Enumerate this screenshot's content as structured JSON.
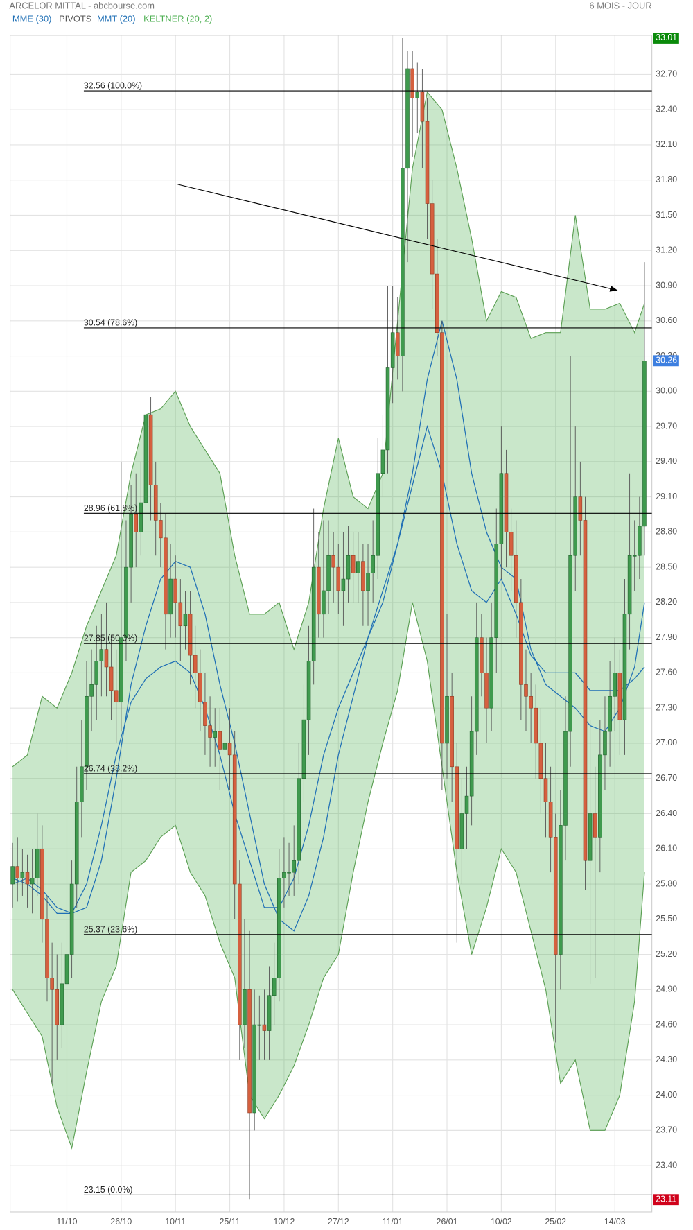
{
  "header": {
    "title": "ARCELOR MITTAL - abcbourse.com",
    "period": "6 MOIS - JOUR"
  },
  "chart_data": {
    "type": "candlestick",
    "categories": [
      null,
      null,
      null,
      null,
      null,
      null,
      null,
      null,
      null,
      null,
      null,
      "11/10",
      null,
      null,
      null,
      null,
      null,
      null,
      null,
      null,
      null,
      null,
      "26/10",
      null,
      null,
      null,
      null,
      null,
      null,
      null,
      null,
      null,
      null,
      "10/11",
      null,
      null,
      null,
      null,
      null,
      null,
      null,
      null,
      null,
      null,
      "25/11",
      null,
      null,
      null,
      null,
      null,
      null,
      null,
      null,
      null,
      null,
      "10/12",
      null,
      null,
      null,
      null,
      null,
      null,
      null,
      null,
      null,
      null,
      "27/12",
      null,
      null,
      null,
      null,
      null,
      null,
      null,
      null,
      null,
      null,
      "11/01",
      null,
      null,
      null,
      null,
      null,
      null,
      null,
      null,
      null,
      null,
      "26/01",
      null,
      null,
      null,
      null,
      null,
      null,
      null,
      null,
      null,
      null,
      "10/02",
      null,
      null,
      null,
      null,
      null,
      null,
      null,
      null,
      null,
      null,
      "25/02",
      null,
      null,
      null,
      null,
      null,
      null,
      null,
      null,
      null,
      null,
      null,
      "14/03",
      null,
      null,
      null,
      null,
      null,
      null
    ],
    "xlim": [
      -0.5,
      129.5
    ],
    "ylim": [
      23.005,
      33.034
    ],
    "yticks": [
      {
        "value": 23.4,
        "label": "23.40"
      },
      {
        "value": 23.7,
        "label": "23.70"
      },
      {
        "value": 24.0,
        "label": "24.00"
      },
      {
        "value": 24.3,
        "label": "24.30"
      },
      {
        "value": 24.6,
        "label": "24.60"
      },
      {
        "value": 24.9,
        "label": "24.90"
      },
      {
        "value": 25.2,
        "label": "25.20"
      },
      {
        "value": 25.5,
        "label": "25.50"
      },
      {
        "value": 25.8,
        "label": "25.80"
      },
      {
        "value": 26.1,
        "label": "26.10"
      },
      {
        "value": 26.4,
        "label": "26.40"
      },
      {
        "value": 26.7,
        "label": "26.70"
      },
      {
        "value": 27.0,
        "label": "27.00"
      },
      {
        "value": 27.3,
        "label": "27.30"
      },
      {
        "value": 27.6,
        "label": "27.60"
      },
      {
        "value": 27.9,
        "label": "27.90"
      },
      {
        "value": 28.2,
        "label": "28.20"
      },
      {
        "value": 28.5,
        "label": "28.50"
      },
      {
        "value": 28.8,
        "label": "28.80"
      },
      {
        "value": 29.1,
        "label": "29.10"
      },
      {
        "value": 29.4,
        "label": "29.40"
      },
      {
        "value": 29.7,
        "label": "29.70"
      },
      {
        "value": 30.0,
        "label": "30.00"
      },
      {
        "value": 30.3,
        "label": "30.30"
      },
      {
        "value": 30.6,
        "label": "30.60"
      },
      {
        "value": 30.9,
        "label": "30.90"
      },
      {
        "value": 31.2,
        "label": "31.20"
      },
      {
        "value": 31.5,
        "label": "31.50"
      },
      {
        "value": 31.8,
        "label": "31.80"
      },
      {
        "value": 32.1,
        "label": "32.10"
      },
      {
        "value": 32.4,
        "label": "32.40"
      },
      {
        "value": 32.7,
        "label": "32.70"
      }
    ],
    "grid": true,
    "up_color": "#3f9a4e",
    "down_color": "#d5603f",
    "open": [
      25.8,
      25.95,
      25.85,
      25.9,
      25.8,
      25.85,
      26.1,
      25.5,
      25.0,
      24.9,
      24.6,
      24.95,
      25.2,
      25.8,
      26.5,
      26.8,
      27.4,
      27.5,
      27.7,
      27.8,
      27.65,
      27.45,
      27.35,
      27.9,
      28.5,
      28.95,
      28.8,
      29.05,
      29.8,
      29.2,
      28.9,
      28.75,
      28.1,
      28.4,
      28.2,
      28.0,
      28.1,
      27.75,
      27.6,
      27.35,
      27.15,
      27.05,
      27.1,
      26.95,
      27.0,
      26.9,
      25.8,
      24.6,
      24.9,
      23.85,
      24.6,
      24.6,
      24.55,
      24.85,
      25.0,
      25.85,
      25.9,
      25.9,
      26.0,
      26.7,
      27.2,
      27.7,
      28.5,
      28.1,
      28.3,
      28.6,
      28.5,
      28.3,
      28.4,
      28.6,
      28.45,
      28.55,
      28.3,
      28.45,
      28.6,
      29.3,
      29.5,
      30.2,
      30.5,
      30.3,
      31.9,
      32.75,
      32.5,
      32.55,
      32.3,
      31.6,
      31.0,
      30.5,
      27.0,
      27.4,
      26.8,
      26.1,
      26.4,
      26.55,
      27.1,
      27.9,
      27.6,
      27.3,
      27.9,
      28.7,
      29.3,
      28.8,
      28.6,
      28.2,
      27.5,
      27.4,
      27.3,
      27.0,
      26.7,
      26.5,
      26.2,
      25.2,
      26.3,
      27.1,
      28.6,
      29.1,
      28.9,
      26.0,
      26.4,
      26.2,
      26.9,
      27.1,
      27.4,
      27.6,
      27.2,
      28.1,
      28.6,
      28.6,
      28.85
    ],
    "high": [
      26.15,
      26.2,
      26.1,
      26.05,
      26.1,
      26.4,
      26.3,
      25.7,
      25.3,
      25.2,
      25.3,
      25.5,
      26.0,
      26.8,
      27.2,
      27.7,
      27.8,
      28.0,
      28.1,
      28.2,
      27.9,
      27.8,
      29.4,
      28.9,
      29.2,
      29.3,
      29.4,
      30.15,
      29.95,
      29.4,
      29.05,
      28.95,
      28.7,
      28.6,
      28.4,
      28.3,
      28.3,
      28.0,
      27.8,
      27.6,
      27.4,
      27.3,
      27.3,
      27.25,
      27.3,
      27.1,
      26.0,
      25.5,
      25.4,
      24.9,
      24.85,
      24.9,
      25.1,
      25.3,
      26.1,
      26.2,
      26.15,
      26.3,
      27.0,
      27.5,
      28.0,
      29.0,
      28.8,
      28.9,
      28.9,
      28.8,
      28.7,
      28.8,
      28.85,
      28.8,
      28.8,
      28.7,
      28.7,
      28.9,
      29.6,
      29.8,
      30.9,
      30.9,
      30.8,
      33.01,
      32.9,
      32.9,
      32.8,
      32.75,
      32.5,
      31.8,
      31.3,
      30.6,
      28.1,
      27.6,
      27.0,
      26.7,
      26.8,
      27.4,
      28.2,
      28.1,
      27.9,
      28.2,
      29.0,
      29.7,
      29.5,
      29.0,
      28.9,
      28.4,
      27.8,
      27.6,
      27.5,
      27.3,
      27.0,
      26.8,
      26.4,
      26.6,
      27.4,
      30.3,
      29.7,
      29.4,
      29.1,
      27.2,
      26.8,
      27.2,
      27.4,
      27.7,
      27.9,
      27.8,
      28.4,
      29.3,
      28.9,
      29.1,
      31.1
    ],
    "low": [
      25.6,
      25.65,
      25.7,
      25.6,
      25.55,
      25.7,
      25.3,
      24.8,
      24.1,
      24.3,
      24.4,
      24.7,
      25.0,
      25.6,
      26.2,
      26.6,
      27.1,
      27.2,
      27.4,
      27.4,
      27.2,
      27.0,
      27.1,
      27.7,
      28.2,
      28.5,
      28.6,
      28.8,
      28.9,
      28.6,
      28.5,
      27.8,
      27.9,
      27.9,
      27.7,
      27.8,
      27.5,
      27.3,
      27.1,
      26.9,
      26.8,
      26.8,
      26.6,
      26.7,
      26.6,
      25.5,
      24.3,
      24.4,
      23.11,
      23.7,
      24.3,
      24.3,
      24.3,
      24.6,
      24.8,
      25.6,
      25.7,
      25.7,
      25.8,
      26.5,
      26.9,
      27.5,
      27.9,
      27.9,
      28.1,
      28.2,
      28.1,
      28.0,
      28.2,
      28.2,
      28.2,
      28.0,
      28.0,
      28.2,
      28.4,
      29.1,
      29.3,
      29.9,
      30.1,
      30.0,
      31.1,
      32.0,
      32.2,
      31.9,
      31.3,
      30.7,
      30.3,
      26.6,
      26.7,
      26.5,
      25.3,
      25.8,
      26.1,
      26.3,
      26.9,
      27.4,
      27.0,
      27.1,
      27.6,
      28.4,
      28.5,
      28.3,
      27.9,
      27.2,
      27.1,
      27.0,
      26.7,
      26.4,
      26.2,
      25.9,
      24.45,
      24.9,
      26.0,
      26.8,
      28.3,
      28.6,
      25.75,
      24.95,
      25.0,
      25.9,
      26.6,
      26.8,
      27.1,
      26.9,
      26.9,
      27.8,
      28.3,
      28.4,
      28.6
    ],
    "close": [
      25.95,
      25.85,
      25.9,
      25.8,
      25.85,
      26.1,
      25.5,
      25.0,
      24.9,
      24.6,
      24.95,
      25.2,
      25.8,
      26.5,
      26.8,
      27.4,
      27.5,
      27.7,
      27.8,
      27.65,
      27.45,
      27.35,
      27.9,
      28.5,
      28.95,
      28.8,
      29.05,
      29.8,
      29.2,
      28.9,
      28.75,
      28.1,
      28.4,
      28.2,
      28.0,
      28.1,
      27.75,
      27.6,
      27.35,
      27.15,
      27.05,
      27.1,
      26.95,
      27.0,
      26.9,
      25.8,
      24.6,
      24.9,
      23.85,
      24.6,
      24.6,
      24.55,
      24.85,
      25.0,
      25.85,
      25.9,
      25.9,
      26.0,
      26.7,
      27.2,
      27.7,
      28.5,
      28.1,
      28.3,
      28.6,
      28.5,
      28.3,
      28.4,
      28.6,
      28.45,
      28.55,
      28.3,
      28.45,
      28.6,
      29.3,
      29.5,
      30.2,
      30.5,
      30.3,
      31.9,
      32.75,
      32.5,
      32.55,
      32.3,
      31.6,
      31.0,
      30.5,
      27.0,
      27.4,
      26.8,
      26.1,
      26.4,
      26.55,
      27.1,
      27.9,
      27.6,
      27.3,
      27.9,
      28.7,
      29.3,
      28.8,
      28.6,
      28.2,
      27.5,
      27.4,
      27.3,
      27.0,
      26.7,
      26.5,
      26.2,
      25.2,
      26.3,
      27.1,
      28.6,
      29.1,
      28.9,
      26.0,
      26.4,
      26.2,
      26.9,
      27.1,
      27.4,
      27.6,
      27.2,
      28.1,
      28.6,
      28.6,
      28.85,
      30.26
    ],
    "series": [
      {
        "name": "MME (30)",
        "color": "#1f6fb5",
        "x": [
          0,
          3,
          6,
          9,
          12,
          15,
          18,
          21,
          24,
          27,
          30,
          33,
          36,
          39,
          42,
          45,
          48,
          51,
          54,
          57,
          60,
          63,
          66,
          69,
          72,
          75,
          78,
          81,
          84,
          87,
          90,
          93,
          96,
          99,
          102,
          105,
          108,
          111,
          114,
          117,
          120,
          123,
          126,
          128
        ],
        "values": [
          25.8,
          25.85,
          25.75,
          25.6,
          25.55,
          25.8,
          26.3,
          26.9,
          27.35,
          27.55,
          27.65,
          27.7,
          27.6,
          27.3,
          26.9,
          26.4,
          26.0,
          25.6,
          25.6,
          25.85,
          26.3,
          26.9,
          27.3,
          27.6,
          27.9,
          28.3,
          28.7,
          29.2,
          29.7,
          29.3,
          28.7,
          28.3,
          28.2,
          28.4,
          28.1,
          27.75,
          27.6,
          27.6,
          27.6,
          27.45,
          27.45,
          27.45,
          27.55,
          27.65
        ]
      },
      {
        "name": "MMT (20)",
        "color": "#1f6fb5",
        "x": [
          0,
          3,
          6,
          9,
          12,
          15,
          18,
          21,
          24,
          27,
          30,
          33,
          36,
          39,
          42,
          45,
          48,
          51,
          54,
          57,
          60,
          63,
          66,
          69,
          72,
          75,
          78,
          81,
          84,
          87,
          90,
          93,
          96,
          99,
          102,
          105,
          108,
          111,
          114,
          117,
          120,
          123,
          126,
          128
        ],
        "values": [
          25.85,
          25.8,
          25.7,
          25.55,
          25.55,
          25.6,
          26.0,
          26.7,
          27.5,
          28.0,
          28.4,
          28.55,
          28.5,
          28.1,
          27.5,
          27.0,
          26.4,
          25.8,
          25.5,
          25.4,
          25.7,
          26.2,
          26.9,
          27.4,
          27.9,
          28.2,
          28.7,
          29.3,
          30.1,
          30.6,
          30.1,
          29.3,
          28.8,
          28.5,
          28.4,
          27.8,
          27.5,
          27.4,
          27.3,
          27.15,
          27.1,
          27.3,
          27.65,
          28.2
        ]
      }
    ],
    "keltner": {
      "name": "KELTNER (20, 2)",
      "color": "#4caf50",
      "line_color": "#5a9e52",
      "x": [
        0,
        3,
        6,
        9,
        12,
        15,
        18,
        21,
        24,
        27,
        30,
        33,
        36,
        39,
        42,
        45,
        48,
        51,
        54,
        57,
        60,
        63,
        66,
        69,
        72,
        75,
        78,
        81,
        84,
        87,
        90,
        93,
        96,
        99,
        102,
        105,
        108,
        111,
        114,
        117,
        120,
        123,
        126,
        128
      ],
      "upper": [
        26.8,
        26.9,
        27.4,
        27.3,
        27.6,
        28.0,
        28.3,
        28.6,
        29.3,
        29.8,
        29.85,
        30.0,
        29.7,
        29.5,
        29.3,
        28.6,
        28.1,
        28.1,
        28.2,
        27.8,
        28.2,
        29.0,
        29.6,
        29.1,
        29.0,
        29.3,
        30.6,
        31.9,
        32.55,
        32.4,
        31.9,
        31.3,
        30.6,
        30.85,
        30.8,
        30.45,
        30.5,
        30.5,
        31.5,
        30.7,
        30.7,
        30.75,
        30.5,
        30.75
      ],
      "lower": [
        24.9,
        24.7,
        24.5,
        23.9,
        23.55,
        24.2,
        24.8,
        25.1,
        25.9,
        26.0,
        26.2,
        26.3,
        25.9,
        25.7,
        25.3,
        25.0,
        24.0,
        23.8,
        24.0,
        24.25,
        24.6,
        25.0,
        25.2,
        25.9,
        26.5,
        27.0,
        27.45,
        28.2,
        27.7,
        26.8,
        25.9,
        25.2,
        25.6,
        26.1,
        25.9,
        25.4,
        24.9,
        24.1,
        24.3,
        23.7,
        23.7,
        24.0,
        24.8,
        25.9
      ]
    },
    "pivots": {
      "name": "PIVOTS",
      "color": "#555555",
      "line_color": "#000000",
      "levels": [
        {
          "value": 32.56,
          "label": "32.56  (100.0%)"
        },
        {
          "value": 30.54,
          "label": "30.54  (78.6%)"
        },
        {
          "value": 28.96,
          "label": "28.96  (61.8%)"
        },
        {
          "value": 27.85,
          "label": "27.85  (50.0%)"
        },
        {
          "value": 26.74,
          "label": "26.74  (38.2%)"
        },
        {
          "value": 25.37,
          "label": "25.37  (23.6%)"
        },
        {
          "value": 23.15,
          "label": "23.15  (0.0%)"
        }
      ]
    },
    "price_tags": [
      {
        "value": 33.01,
        "color": "#0a8a0a"
      },
      {
        "value": 30.26,
        "color": "#3d7fe0"
      },
      {
        "value": 23.11,
        "color": "#d0021b"
      }
    ]
  }
}
